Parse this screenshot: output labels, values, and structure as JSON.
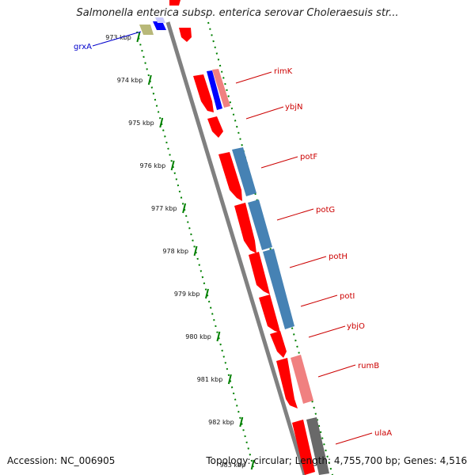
{
  "title": "Salmonella enterica subsp. enterica serovar Choleraesuis str...",
  "footer": {
    "accession": "Accession: NC_006905",
    "topology": "Topology: circular; Length: 4,755,700 bp; Genes: 4,516"
  },
  "colors": {
    "backbone": "#808080",
    "forward_cds": "#ff0000",
    "gene_light": "#f08080",
    "gene_blue": "#4682b4",
    "gene_dark": "#696969",
    "ticks": "#008000",
    "label_red": "#cc0000",
    "label_blue": "#0000cc"
  },
  "ticks": [
    "973 kbp",
    "974 kbp",
    "975 kbp",
    "976 kbp",
    "977 kbp",
    "978 kbp",
    "979 kbp",
    "980 kbp",
    "981 kbp",
    "982 kbp",
    "983 kbp"
  ],
  "genes": [
    {
      "name": "grxA",
      "color": "blue"
    },
    {
      "name": "rimK",
      "color": "red"
    },
    {
      "name": "ybjN",
      "color": "red"
    },
    {
      "name": "potF",
      "color": "red"
    },
    {
      "name": "potG",
      "color": "red"
    },
    {
      "name": "potH",
      "color": "red"
    },
    {
      "name": "potI",
      "color": "red"
    },
    {
      "name": "ybjO",
      "color": "red"
    },
    {
      "name": "rumB",
      "color": "red"
    },
    {
      "name": "ulaA",
      "color": "red"
    }
  ]
}
